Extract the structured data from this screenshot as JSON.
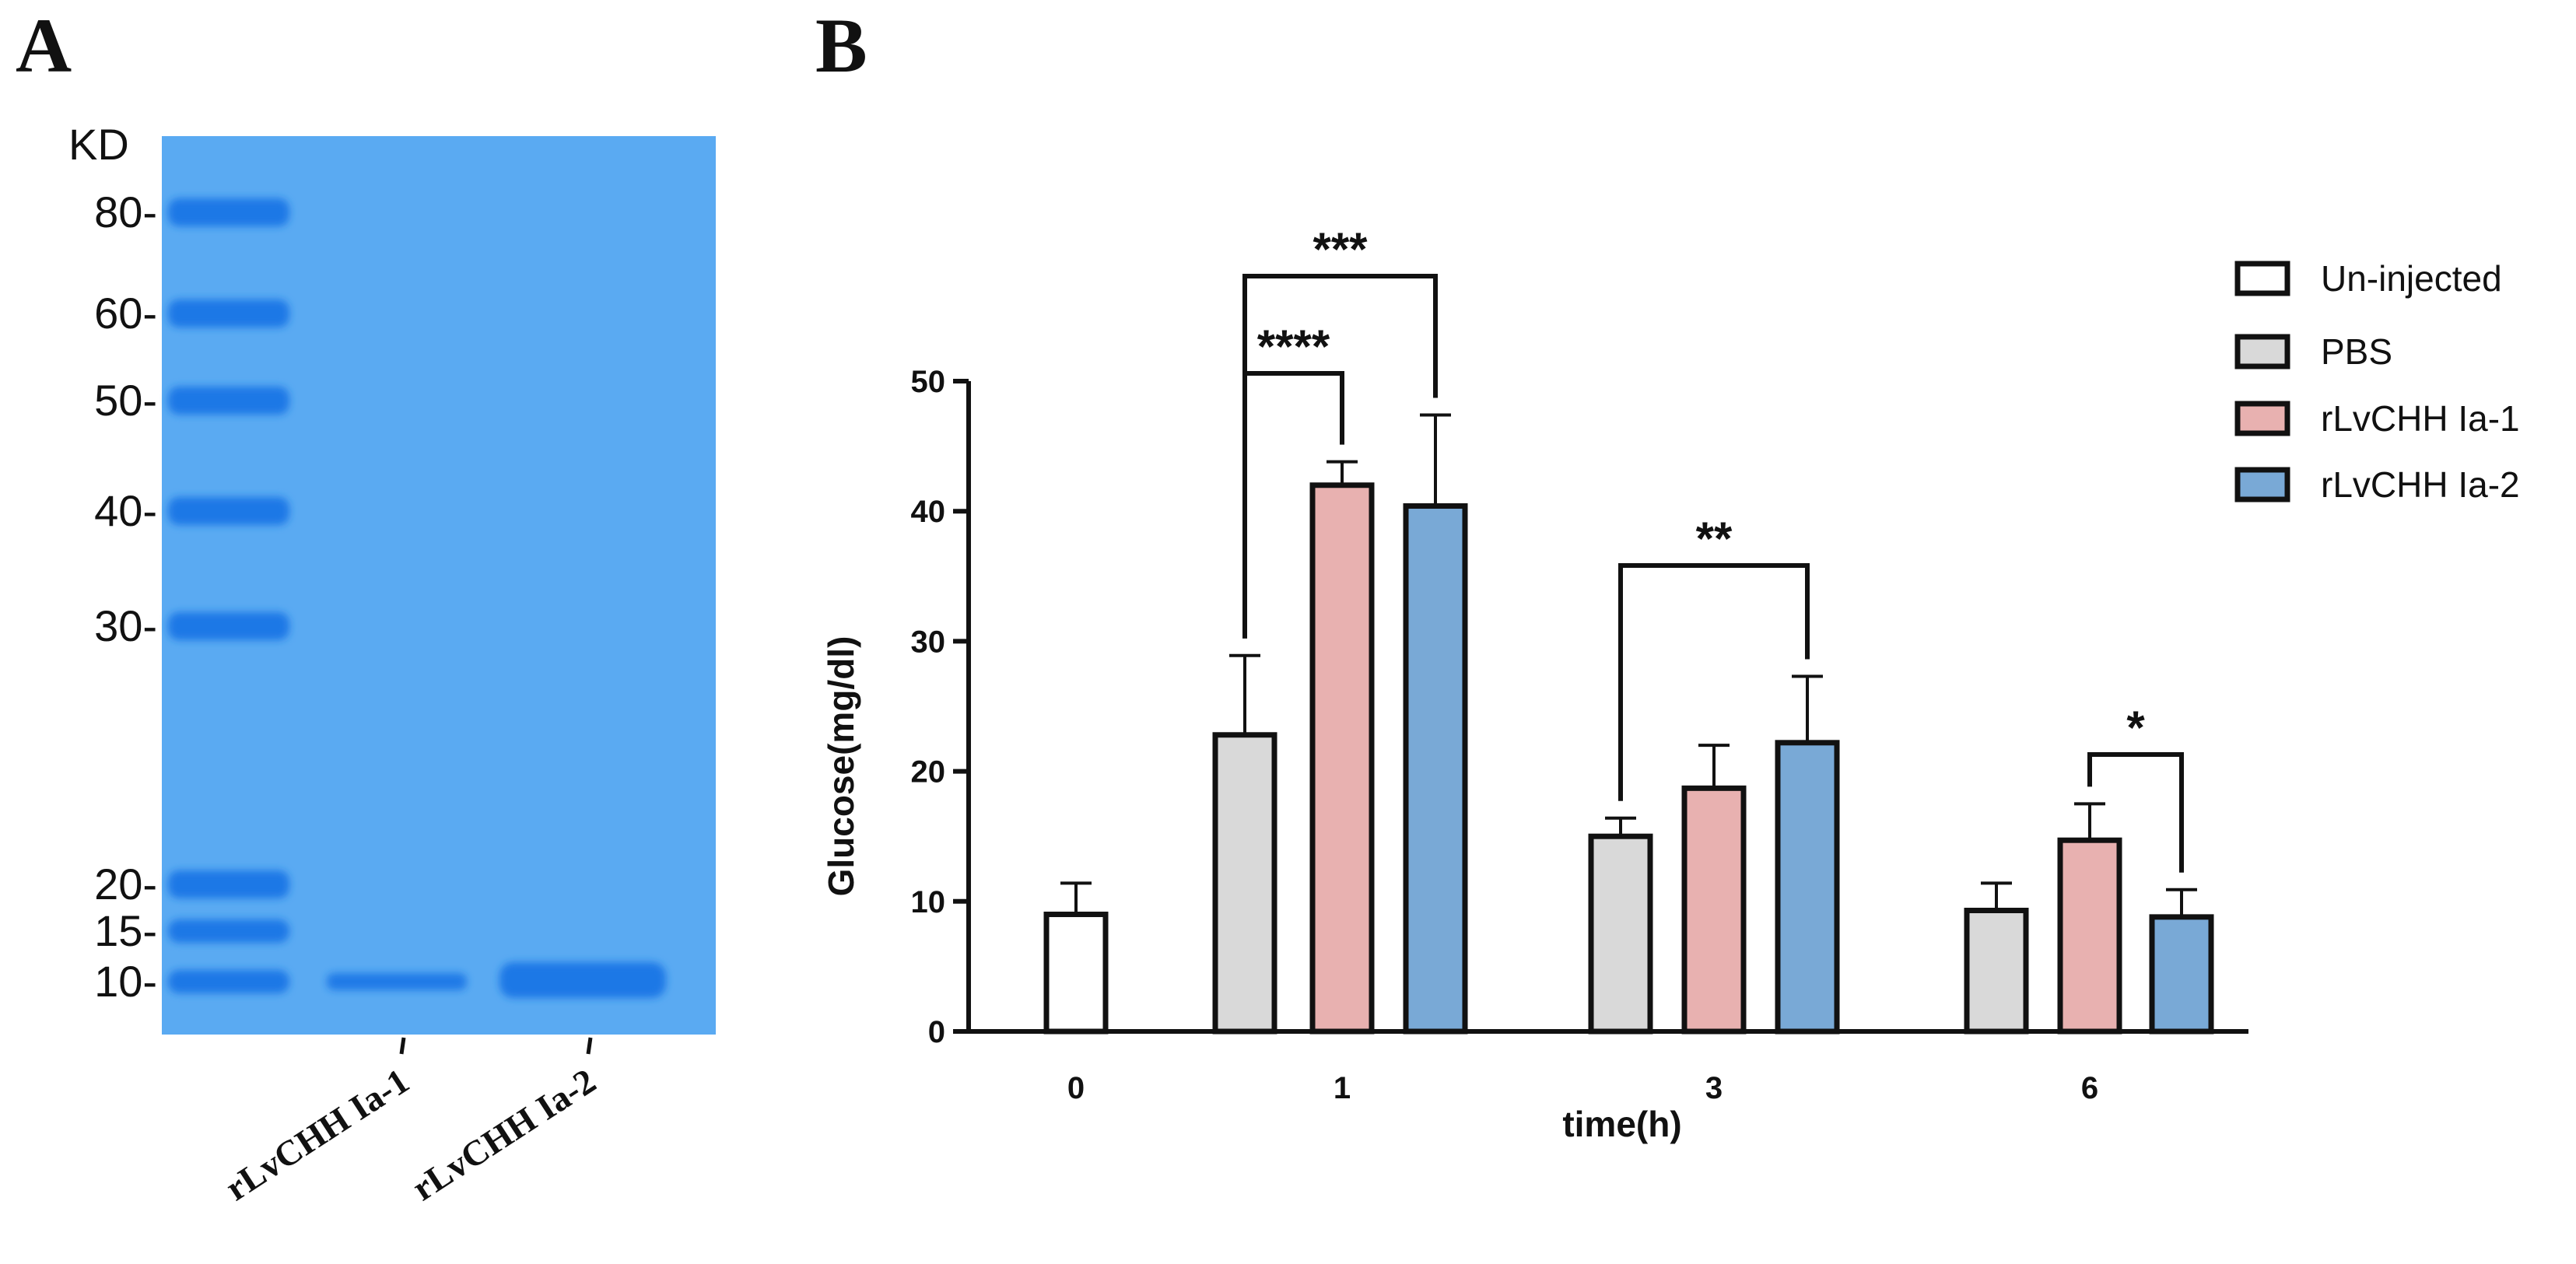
{
  "panel_a": {
    "label": "A",
    "unit_label": "KD",
    "markers": [
      {
        "kd": 80,
        "label": "80-"
      },
      {
        "kd": 60,
        "label": "60-"
      },
      {
        "kd": 50,
        "label": "50-"
      },
      {
        "kd": 40,
        "label": "40-"
      },
      {
        "kd": 30,
        "label": "30-"
      },
      {
        "kd": 20,
        "label": "20-"
      },
      {
        "kd": 15,
        "label": "15-"
      },
      {
        "kd": 10,
        "label": "10-"
      }
    ],
    "lanes": [
      "rLvCHH Ia-1",
      "rLvCHH Ia-2"
    ],
    "gel_color": "#5aaaf2",
    "band_color": "#1a78e6"
  },
  "panel_b": {
    "label": "B"
  },
  "chart_data": {
    "type": "bar",
    "title": "",
    "xlabel": "time(h)",
    "ylabel": "Glucose(mg/dl)",
    "ylim": [
      0,
      50
    ],
    "yticks": [
      0,
      10,
      20,
      30,
      40,
      50
    ],
    "categories": [
      "0",
      "1",
      "3",
      "6"
    ],
    "series": [
      {
        "name": "Un-injected",
        "color": "#ffffff",
        "values": [
          9.0,
          null,
          null,
          null
        ],
        "errors": [
          2.4,
          null,
          null,
          null
        ]
      },
      {
        "name": "PBS",
        "color": "#d9d9d9",
        "values": [
          null,
          22.8,
          15.0,
          9.3
        ],
        "errors": [
          null,
          6.1,
          1.4,
          2.1
        ]
      },
      {
        "name": "rLvCHH Ia-1",
        "color": "#e8b1b0",
        "values": [
          null,
          42.0,
          18.7,
          14.7
        ],
        "errors": [
          null,
          1.8,
          3.3,
          2.8
        ]
      },
      {
        "name": "rLvCHH Ia-2",
        "color": "#79a9d6",
        "values": [
          null,
          40.4,
          22.2,
          8.8
        ],
        "errors": [
          null,
          7.0,
          5.1,
          2.1
        ]
      }
    ],
    "significance": [
      {
        "category": "1",
        "from": "PBS",
        "to": "rLvCHH Ia-1",
        "label": "****"
      },
      {
        "category": "1",
        "from": "PBS",
        "to": "rLvCHH Ia-2",
        "label": "***"
      },
      {
        "category": "3",
        "from": "PBS",
        "to": "rLvCHH Ia-2",
        "label": "**"
      },
      {
        "category": "6",
        "from": "rLvCHH Ia-1",
        "to": "rLvCHH Ia-2",
        "label": "*"
      }
    ],
    "legend_position": "top-right"
  }
}
